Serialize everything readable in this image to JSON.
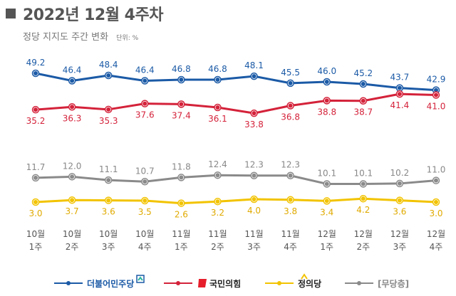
{
  "header": {
    "title": "2022년 12월 4주차",
    "subtitle": "정당 지지도 주간 변화",
    "unit": "단위: %"
  },
  "chart_data": {
    "type": "line",
    "title": "2022년 12월 4주차",
    "subtitle": "정당 지지도 주간 변화",
    "unit": "%",
    "categories": [
      {
        "month": "10월",
        "week": "1주"
      },
      {
        "month": "10월",
        "week": "2주"
      },
      {
        "month": "10월",
        "week": "3주"
      },
      {
        "month": "10월",
        "week": "4주"
      },
      {
        "month": "11월",
        "week": "1주"
      },
      {
        "month": "11월",
        "week": "2주"
      },
      {
        "month": "11월",
        "week": "3주"
      },
      {
        "month": "11월",
        "week": "4주"
      },
      {
        "month": "12월",
        "week": "1주"
      },
      {
        "month": "12월",
        "week": "2주"
      },
      {
        "month": "12월",
        "week": "3주"
      },
      {
        "month": "12월",
        "week": "4주"
      }
    ],
    "series": [
      {
        "name": "더불어민주당",
        "color": "#1b5aa6",
        "label_color": "#1b5aa6",
        "label_pos": "above",
        "values": [
          49.2,
          46.4,
          48.4,
          46.4,
          46.8,
          46.8,
          48.1,
          45.5,
          46.0,
          45.2,
          43.7,
          42.9
        ]
      },
      {
        "name": "국민의힘",
        "color": "#d4223a",
        "label_color": "#d4223a",
        "label_pos": "below",
        "values": [
          35.2,
          36.3,
          35.3,
          37.6,
          37.4,
          36.1,
          33.8,
          36.8,
          38.8,
          38.7,
          41.4,
          41.0
        ]
      },
      {
        "name": "무당층",
        "color": "#8a8a8a",
        "label_color": "#888888",
        "label_pos": "above",
        "values": [
          11.7,
          12.0,
          11.1,
          10.7,
          11.8,
          12.4,
          12.3,
          12.3,
          10.1,
          10.1,
          10.2,
          11.0
        ]
      },
      {
        "name": "정의당",
        "color": "#f2c300",
        "label_color": "#e0aa00",
        "label_pos": "below",
        "values": [
          3.0,
          3.7,
          3.6,
          3.5,
          2.6,
          3.2,
          4.0,
          3.8,
          3.4,
          4.2,
          3.6,
          3.0
        ]
      }
    ]
  },
  "legend": [
    {
      "name": "더불어민주당",
      "color": "#1b5aa6",
      "logo": "democratic-party-logo"
    },
    {
      "name": "국민의힘",
      "color": "#d4223a",
      "logo": "ppp-logo"
    },
    {
      "name": "정의당",
      "color": "#f2c300",
      "logo": "justice-party-logo"
    },
    {
      "name": "[무당층]",
      "color": "#8a8a8a",
      "logo": ""
    }
  ]
}
